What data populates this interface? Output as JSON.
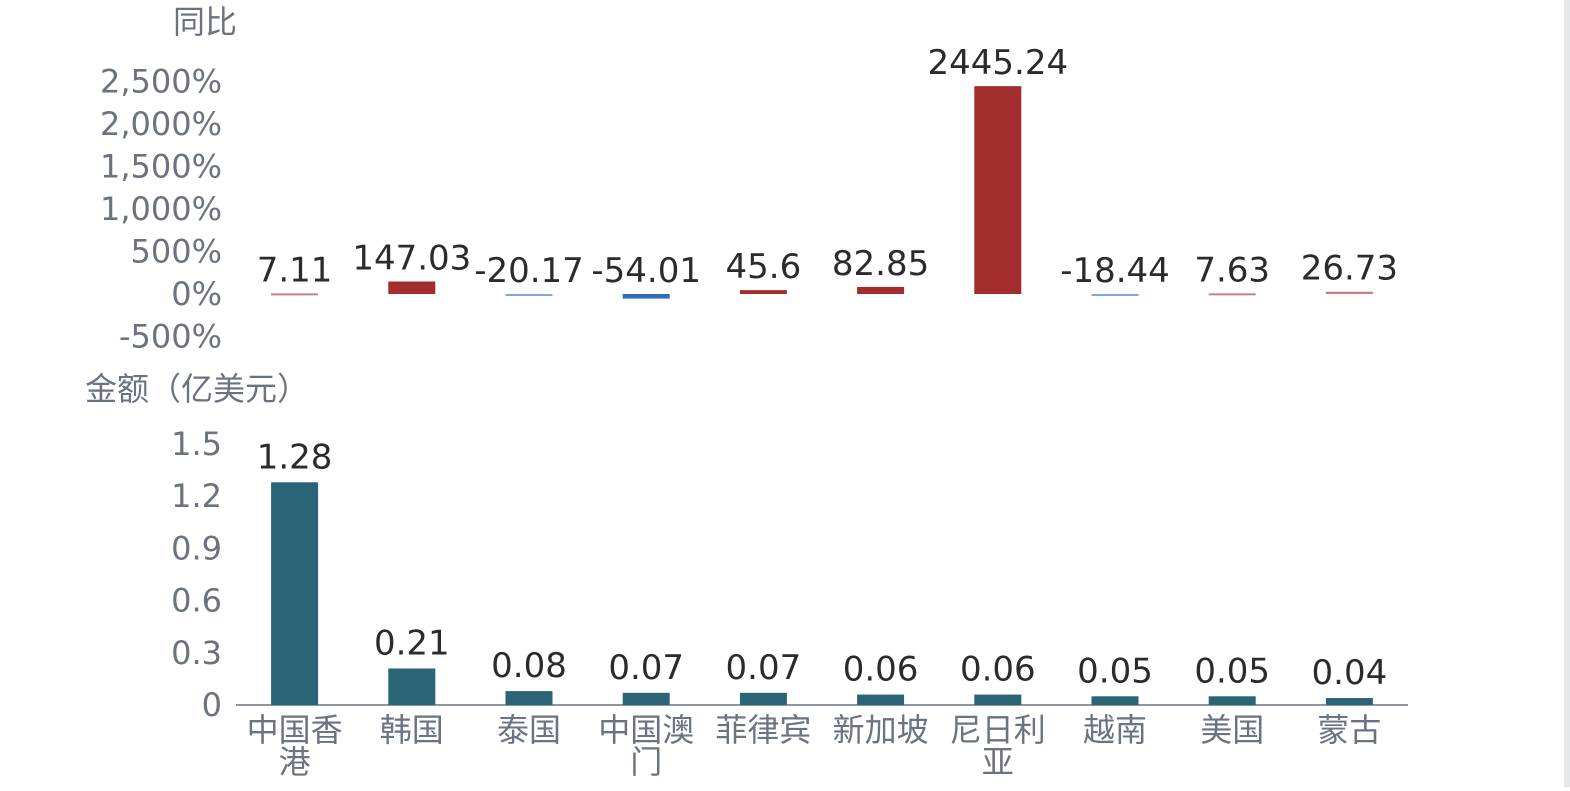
{
  "colors": {
    "positive": "#a32d2d",
    "negative": "#2f6bbf",
    "amount": "#2a6476",
    "axis": "#6b7280",
    "label": "#2b2b2b"
  },
  "chart_data": [
    {
      "type": "bar",
      "title": "同比",
      "ylabel": "同比",
      "ylim": [
        -500,
        2500
      ],
      "yticks": [
        "2,500%",
        "2,000%",
        "1,500%",
        "1,000%",
        "500%",
        "0%",
        "-500%"
      ],
      "ytick_values": [
        2500,
        2000,
        1500,
        1000,
        500,
        0,
        -500
      ],
      "categories": [
        "中国香港",
        "韩国",
        "泰国",
        "中国澳门",
        "菲律宾",
        "新加坡",
        "尼日利亚",
        "越南",
        "美国",
        "蒙古"
      ],
      "values": [
        7.11,
        147.03,
        -20.17,
        -54.01,
        45.6,
        82.85,
        2445.24,
        -18.44,
        7.63,
        26.73
      ],
      "labels": [
        "7.11",
        "147.03",
        "-20.17",
        "-54.01",
        "45.6",
        "82.85",
        "2445.24",
        "-18.44",
        "7.63",
        "26.73"
      ]
    },
    {
      "type": "bar",
      "title": "金额（亿美元）",
      "ylabel": "金额（亿美元）",
      "ylim": [
        0,
        1.5
      ],
      "yticks": [
        "1.5",
        "1.2",
        "0.9",
        "0.6",
        "0.3",
        "0"
      ],
      "ytick_values": [
        1.5,
        1.2,
        0.9,
        0.6,
        0.3,
        0
      ],
      "categories": [
        "中国香港",
        "韩国",
        "泰国",
        "中国澳门",
        "菲律宾",
        "新加坡",
        "尼日利亚",
        "越南",
        "美国",
        "蒙古"
      ],
      "category_lines": [
        [
          "中国香",
          "港"
        ],
        [
          "韩国"
        ],
        [
          "泰国"
        ],
        [
          "中国澳",
          "门"
        ],
        [
          "菲律宾"
        ],
        [
          "新加坡"
        ],
        [
          "尼日利",
          "亚"
        ],
        [
          "越南"
        ],
        [
          "美国"
        ],
        [
          "蒙古"
        ]
      ],
      "values": [
        1.28,
        0.21,
        0.08,
        0.07,
        0.07,
        0.06,
        0.06,
        0.05,
        0.05,
        0.04
      ],
      "labels": [
        "1.28",
        "0.21",
        "0.08",
        "0.07",
        "0.07",
        "0.06",
        "0.06",
        "0.05",
        "0.05",
        "0.04"
      ]
    }
  ]
}
